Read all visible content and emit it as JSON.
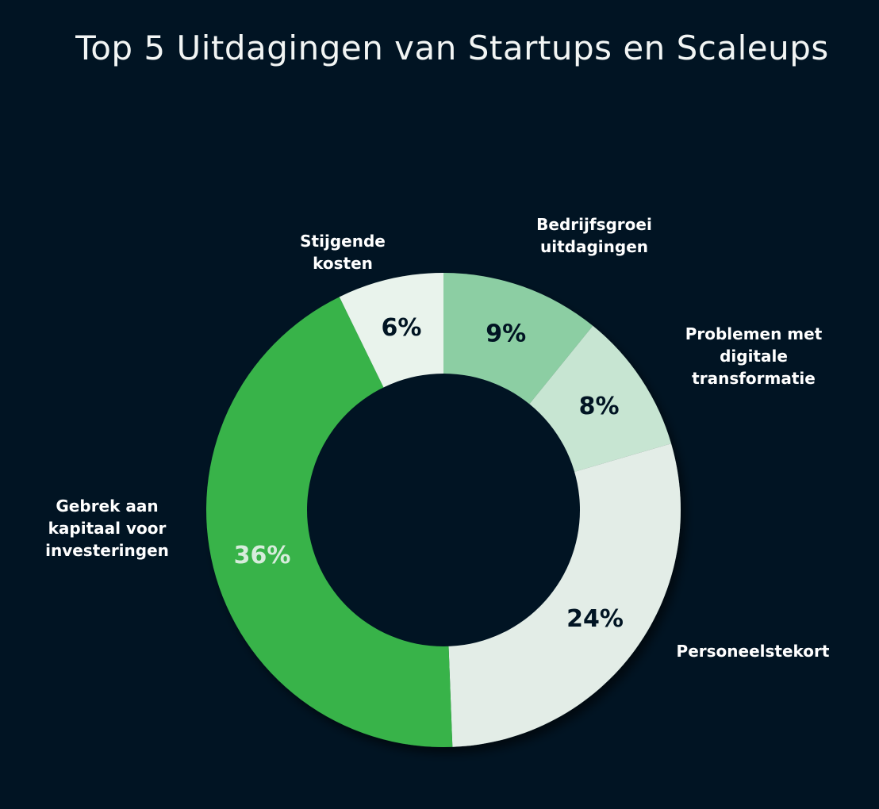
{
  "chart_data": {
    "type": "pie",
    "title": "Top 5 Uitdagingen van Startups en Scaleups",
    "start_angle_deg": 0,
    "slices": [
      {
        "label": "Bedrijfsgroei uitdagingen",
        "label_lines": [
          "Bedrijfsgroei",
          "uitdagingen"
        ],
        "value": 9,
        "value_label": "9%",
        "color": "#8ccea3",
        "text_color": "#011423"
      },
      {
        "label": "Problemen met digitale transformatie",
        "label_lines": [
          "Problemen met",
          "digitale",
          "transformatie"
        ],
        "value": 8,
        "value_label": "8%",
        "color": "#c7e5d2",
        "text_color": "#011423"
      },
      {
        "label": "Personeelstekort",
        "label_lines": [
          "Personeelstekort"
        ],
        "value": 24,
        "value_label": "24%",
        "color": "#e3ede7",
        "text_color": "#011423"
      },
      {
        "label": "Gebrek aan kapitaal voor investeringen",
        "label_lines": [
          "Gebrek aan",
          "kapitaal voor",
          "investeringen"
        ],
        "value": 36,
        "value_label": "36%",
        "color": "#37b34a",
        "text_color": "#d7ecdc"
      },
      {
        "label": "Stijgende kosten",
        "label_lines": [
          "Stijgende",
          "kosten"
        ],
        "value": 6,
        "value_label": "6%",
        "color": "#e9f3ec",
        "text_color": "#011423"
      }
    ]
  }
}
